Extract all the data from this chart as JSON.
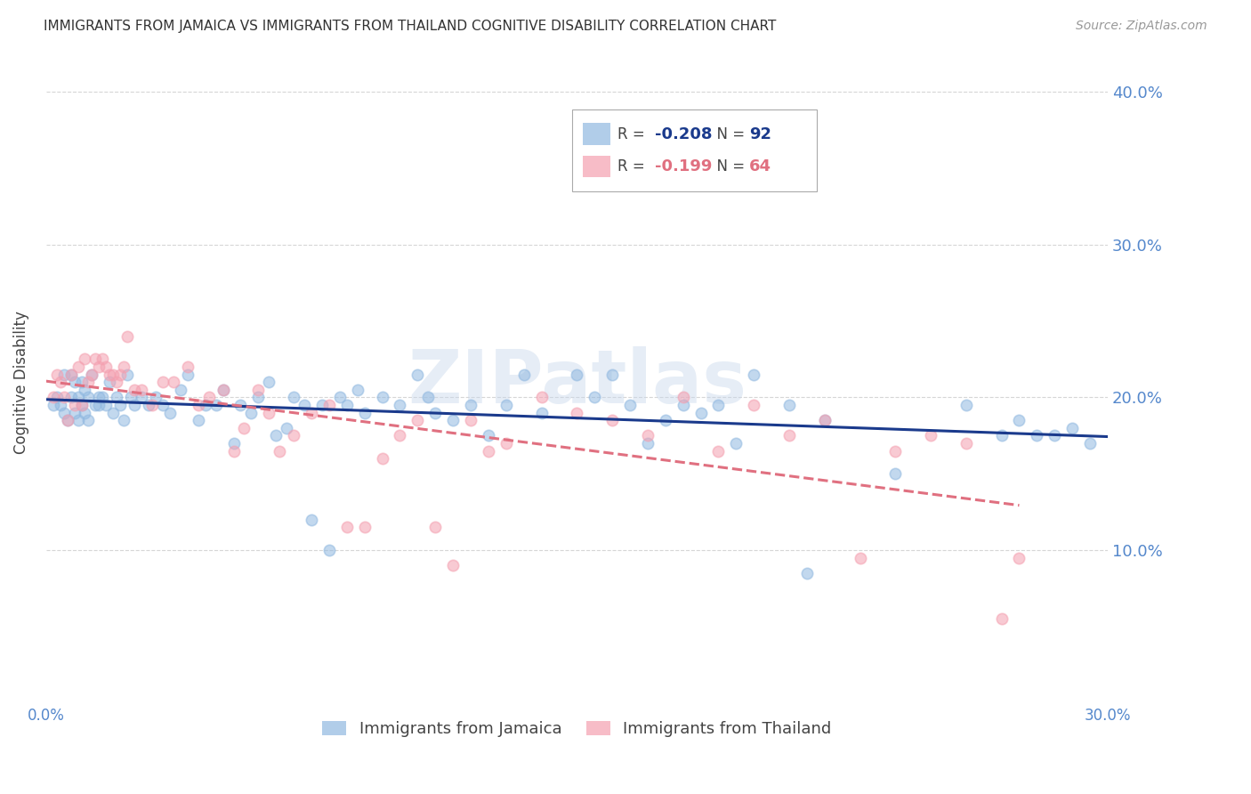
{
  "title": "IMMIGRANTS FROM JAMAICA VS IMMIGRANTS FROM THAILAND COGNITIVE DISABILITY CORRELATION CHART",
  "source": "Source: ZipAtlas.com",
  "ylabel": "Cognitive Disability",
  "x_min": 0.0,
  "x_max": 0.3,
  "y_min": 0.0,
  "y_max": 0.42,
  "y_ticks": [
    0.1,
    0.2,
    0.3,
    0.4
  ],
  "x_ticks": [
    0.0,
    0.05,
    0.1,
    0.15,
    0.2,
    0.25,
    0.3
  ],
  "jamaica_R": -0.208,
  "jamaica_N": 92,
  "thailand_R": -0.199,
  "thailand_N": 64,
  "jamaica_color": "#90B8E0",
  "thailand_color": "#F4A0B0",
  "jamaica_line_color": "#1A3A8C",
  "thailand_line_color": "#E07080",
  "background_color": "#FFFFFF",
  "grid_color": "#CCCCCC",
  "title_color": "#333333",
  "axis_label_color": "#444444",
  "tick_label_color": "#5588CC",
  "source_color": "#999999",
  "watermark_color": "#C8D8EC",
  "legend_label_jamaica": "Immigrants from Jamaica",
  "legend_label_thailand": "Immigrants from Thailand",
  "jamaica_x": [
    0.002,
    0.003,
    0.004,
    0.005,
    0.005,
    0.006,
    0.007,
    0.007,
    0.008,
    0.008,
    0.009,
    0.009,
    0.01,
    0.01,
    0.011,
    0.011,
    0.012,
    0.012,
    0.013,
    0.014,
    0.015,
    0.015,
    0.016,
    0.017,
    0.018,
    0.019,
    0.02,
    0.021,
    0.022,
    0.023,
    0.024,
    0.025,
    0.027,
    0.029,
    0.031,
    0.033,
    0.035,
    0.038,
    0.04,
    0.043,
    0.045,
    0.048,
    0.05,
    0.053,
    0.055,
    0.058,
    0.06,
    0.063,
    0.065,
    0.068,
    0.07,
    0.073,
    0.075,
    0.078,
    0.08,
    0.083,
    0.085,
    0.088,
    0.09,
    0.095,
    0.1,
    0.105,
    0.108,
    0.11,
    0.115,
    0.12,
    0.125,
    0.13,
    0.135,
    0.14,
    0.15,
    0.155,
    0.16,
    0.165,
    0.17,
    0.175,
    0.18,
    0.185,
    0.19,
    0.195,
    0.2,
    0.21,
    0.215,
    0.22,
    0.24,
    0.26,
    0.27,
    0.275,
    0.28,
    0.285,
    0.29,
    0.295
  ],
  "jamaica_y": [
    0.195,
    0.2,
    0.195,
    0.19,
    0.215,
    0.185,
    0.2,
    0.215,
    0.19,
    0.21,
    0.185,
    0.2,
    0.195,
    0.21,
    0.19,
    0.205,
    0.185,
    0.2,
    0.215,
    0.195,
    0.2,
    0.195,
    0.2,
    0.195,
    0.21,
    0.19,
    0.2,
    0.195,
    0.185,
    0.215,
    0.2,
    0.195,
    0.2,
    0.195,
    0.2,
    0.195,
    0.19,
    0.205,
    0.215,
    0.185,
    0.195,
    0.195,
    0.205,
    0.17,
    0.195,
    0.19,
    0.2,
    0.21,
    0.175,
    0.18,
    0.2,
    0.195,
    0.12,
    0.195,
    0.1,
    0.2,
    0.195,
    0.205,
    0.19,
    0.2,
    0.195,
    0.215,
    0.2,
    0.19,
    0.185,
    0.195,
    0.175,
    0.195,
    0.215,
    0.19,
    0.215,
    0.2,
    0.215,
    0.195,
    0.17,
    0.185,
    0.195,
    0.19,
    0.195,
    0.17,
    0.215,
    0.195,
    0.085,
    0.185,
    0.15,
    0.195,
    0.175,
    0.185,
    0.175,
    0.175,
    0.18,
    0.17
  ],
  "thailand_x": [
    0.002,
    0.003,
    0.004,
    0.005,
    0.006,
    0.007,
    0.008,
    0.009,
    0.01,
    0.011,
    0.012,
    0.013,
    0.014,
    0.015,
    0.016,
    0.017,
    0.018,
    0.019,
    0.02,
    0.021,
    0.022,
    0.023,
    0.025,
    0.027,
    0.03,
    0.033,
    0.036,
    0.04,
    0.043,
    0.046,
    0.05,
    0.053,
    0.056,
    0.06,
    0.063,
    0.066,
    0.07,
    0.075,
    0.08,
    0.085,
    0.09,
    0.095,
    0.1,
    0.105,
    0.11,
    0.115,
    0.12,
    0.125,
    0.13,
    0.14,
    0.15,
    0.16,
    0.17,
    0.18,
    0.19,
    0.2,
    0.21,
    0.22,
    0.23,
    0.24,
    0.25,
    0.26,
    0.27,
    0.275
  ],
  "thailand_y": [
    0.2,
    0.215,
    0.21,
    0.2,
    0.185,
    0.215,
    0.195,
    0.22,
    0.195,
    0.225,
    0.21,
    0.215,
    0.225,
    0.22,
    0.225,
    0.22,
    0.215,
    0.215,
    0.21,
    0.215,
    0.22,
    0.24,
    0.205,
    0.205,
    0.195,
    0.21,
    0.21,
    0.22,
    0.195,
    0.2,
    0.205,
    0.165,
    0.18,
    0.205,
    0.19,
    0.165,
    0.175,
    0.19,
    0.195,
    0.115,
    0.115,
    0.16,
    0.175,
    0.185,
    0.115,
    0.09,
    0.185,
    0.165,
    0.17,
    0.2,
    0.19,
    0.185,
    0.175,
    0.2,
    0.165,
    0.195,
    0.175,
    0.185,
    0.095,
    0.165,
    0.175,
    0.17,
    0.055,
    0.095
  ]
}
